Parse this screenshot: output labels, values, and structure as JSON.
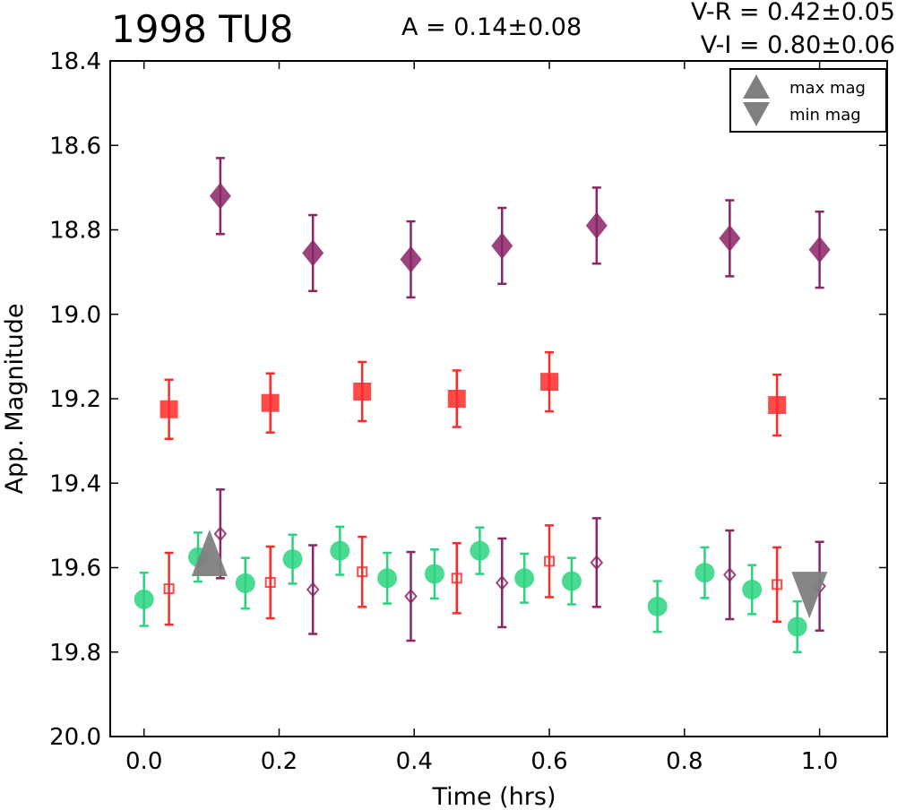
{
  "header": {
    "title": "1998 TU8",
    "amplitude": "A  = 0.14±0.08",
    "color_vr": "V-R = 0.42±0.05",
    "color_vi": "V-I  = 0.80±0.06"
  },
  "chart_data": {
    "type": "scatter",
    "title": "1998 TU8",
    "xlabel": "Time (hrs)",
    "ylabel": "App. Magnitude",
    "xlim": [
      -0.05,
      1.1
    ],
    "ylim": [
      20.0,
      18.4
    ],
    "y_inverted": true,
    "x_ticks": [
      "0.0",
      "0.2",
      "0.4",
      "0.6",
      "0.8",
      "1.0"
    ],
    "y_ticks": [
      "18.4",
      "18.6",
      "18.8",
      "19.0",
      "19.2",
      "19.4",
      "19.6",
      "19.8",
      "20.0"
    ],
    "x_tick_values": [
      0.0,
      0.2,
      0.4,
      0.6,
      0.8,
      1.0
    ],
    "y_tick_values": [
      18.4,
      18.6,
      18.8,
      19.0,
      19.2,
      19.4,
      19.6,
      19.8,
      20.0
    ],
    "legend": {
      "placement": "top-right",
      "entries": [
        {
          "label": "max mag",
          "marker": "triangle-up",
          "color": "#808080"
        },
        {
          "label": "min mag",
          "marker": "triangle-down",
          "color": "#808080"
        }
      ]
    },
    "series": [
      {
        "marker": "diamond",
        "filled": true,
        "color": "#8b2565",
        "alpha": 0.85,
        "points": [
          {
            "x": 0.113,
            "y": 18.72,
            "err": 0.09
          },
          {
            "x": 0.25,
            "y": 18.855,
            "err": 0.09
          },
          {
            "x": 0.395,
            "y": 18.87,
            "err": 0.09
          },
          {
            "x": 0.53,
            "y": 18.838,
            "err": 0.09
          },
          {
            "x": 0.67,
            "y": 18.79,
            "err": 0.09
          },
          {
            "x": 0.867,
            "y": 18.82,
            "err": 0.09
          },
          {
            "x": 1.0,
            "y": 18.847,
            "err": 0.09
          }
        ]
      },
      {
        "marker": "square",
        "filled": true,
        "color": "#ff2a2a",
        "alpha": 0.85,
        "points": [
          {
            "x": 0.037,
            "y": 19.225,
            "err": 0.07
          },
          {
            "x": 0.187,
            "y": 19.21,
            "err": 0.07
          },
          {
            "x": 0.323,
            "y": 19.183,
            "err": 0.07
          },
          {
            "x": 0.463,
            "y": 19.2,
            "err": 0.067
          },
          {
            "x": 0.6,
            "y": 19.16,
            "err": 0.07
          },
          {
            "x": 0.937,
            "y": 19.215,
            "err": 0.072
          }
        ]
      },
      {
        "marker": "circle",
        "filled": true,
        "color": "#2ad47f",
        "alpha": 0.85,
        "points": [
          {
            "x": 0.0,
            "y": 19.675,
            "err": 0.063
          },
          {
            "x": 0.08,
            "y": 19.575,
            "err": 0.058
          },
          {
            "x": 0.15,
            "y": 19.637,
            "err": 0.06
          },
          {
            "x": 0.22,
            "y": 19.58,
            "err": 0.058
          },
          {
            "x": 0.29,
            "y": 19.56,
            "err": 0.057
          },
          {
            "x": 0.36,
            "y": 19.625,
            "err": 0.06
          },
          {
            "x": 0.43,
            "y": 19.615,
            "err": 0.058
          },
          {
            "x": 0.497,
            "y": 19.56,
            "err": 0.055
          },
          {
            "x": 0.563,
            "y": 19.625,
            "err": 0.058
          },
          {
            "x": 0.633,
            "y": 19.632,
            "err": 0.055
          },
          {
            "x": 0.76,
            "y": 19.692,
            "err": 0.06
          },
          {
            "x": 0.83,
            "y": 19.612,
            "err": 0.06
          },
          {
            "x": 0.9,
            "y": 19.652,
            "err": 0.058
          },
          {
            "x": 0.967,
            "y": 19.74,
            "err": 0.06
          }
        ]
      },
      {
        "marker": "square",
        "filled": false,
        "color": "#ff2a2a",
        "alpha": 0.85,
        "points": [
          {
            "x": 0.037,
            "y": 19.65,
            "err": 0.085
          },
          {
            "x": 0.187,
            "y": 19.635,
            "err": 0.085
          },
          {
            "x": 0.323,
            "y": 19.61,
            "err": 0.083
          },
          {
            "x": 0.463,
            "y": 19.625,
            "err": 0.083
          },
          {
            "x": 0.6,
            "y": 19.585,
            "err": 0.085
          },
          {
            "x": 0.937,
            "y": 19.64,
            "err": 0.088
          }
        ]
      },
      {
        "marker": "diamond",
        "filled": false,
        "color": "#8b2565",
        "alpha": 0.85,
        "points": [
          {
            "x": 0.113,
            "y": 19.52,
            "err": 0.105
          },
          {
            "x": 0.25,
            "y": 19.652,
            "err": 0.105
          },
          {
            "x": 0.395,
            "y": 19.668,
            "err": 0.105
          },
          {
            "x": 0.53,
            "y": 19.636,
            "err": 0.105
          },
          {
            "x": 0.67,
            "y": 19.588,
            "err": 0.105
          },
          {
            "x": 0.867,
            "y": 19.617,
            "err": 0.105
          },
          {
            "x": 1.0,
            "y": 19.644,
            "err": 0.105
          }
        ]
      }
    ],
    "extrema": [
      {
        "type": "max mag",
        "marker": "triangle-up",
        "x": 0.097,
        "y": 19.565,
        "color": "#808080"
      },
      {
        "type": "min mag",
        "marker": "triangle-down",
        "x": 0.985,
        "y": 19.665,
        "color": "#808080"
      }
    ]
  }
}
